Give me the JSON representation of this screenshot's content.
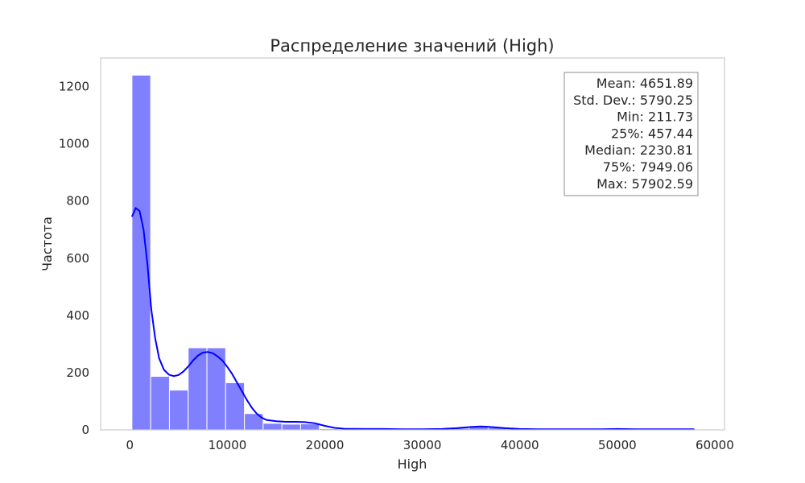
{
  "chart_data": {
    "type": "bar",
    "title": "Распределение значений (High)",
    "xlabel": "High",
    "ylabel": "Частота",
    "xlim": [
      -3000,
      61000
    ],
    "ylim": [
      0,
      1300
    ],
    "x_ticks": [
      0,
      10000,
      20000,
      30000,
      40000,
      50000,
      60000
    ],
    "y_ticks": [
      0,
      200,
      400,
      600,
      800,
      1000,
      1200
    ],
    "grid": false,
    "bar_color": "#8080ff",
    "kde_color": "#0000ff",
    "bins": [
      {
        "x0": 211.73,
        "x1": 2134.76,
        "count": 1240
      },
      {
        "x0": 2134.76,
        "x1": 4057.79,
        "count": 187
      },
      {
        "x0": 4057.79,
        "x1": 5980.82,
        "count": 139
      },
      {
        "x0": 5980.82,
        "x1": 7903.85,
        "count": 287
      },
      {
        "x0": 7903.85,
        "x1": 9826.88,
        "count": 287
      },
      {
        "x0": 9826.88,
        "x1": 11749.91,
        "count": 165
      },
      {
        "x0": 11749.91,
        "x1": 13672.94,
        "count": 57
      },
      {
        "x0": 13672.94,
        "x1": 15595.97,
        "count": 23
      },
      {
        "x0": 15595.97,
        "x1": 17519.0,
        "count": 20
      },
      {
        "x0": 17519.0,
        "x1": 19442.03,
        "count": 21
      },
      {
        "x0": 19442.03,
        "x1": 21365.06,
        "count": 4
      },
      {
        "x0": 21365.06,
        "x1": 23288.09,
        "count": 3
      },
      {
        "x0": 23288.09,
        "x1": 25211.12,
        "count": 3
      },
      {
        "x0": 25211.12,
        "x1": 27134.15,
        "count": 3
      },
      {
        "x0": 27134.15,
        "x1": 29057.18,
        "count": 2
      },
      {
        "x0": 29057.18,
        "x1": 30980.21,
        "count": 2
      },
      {
        "x0": 30980.21,
        "x1": 32903.24,
        "count": 3
      },
      {
        "x0": 32903.24,
        "x1": 34826.27,
        "count": 6
      },
      {
        "x0": 34826.27,
        "x1": 36749.3,
        "count": 10
      },
      {
        "x0": 36749.3,
        "x1": 38672.33,
        "count": 8
      },
      {
        "x0": 38672.33,
        "x1": 40595.36,
        "count": 4
      },
      {
        "x0": 40595.36,
        "x1": 42518.39,
        "count": 2
      },
      {
        "x0": 42518.39,
        "x1": 44441.42,
        "count": 2
      },
      {
        "x0": 44441.42,
        "x1": 46364.45,
        "count": 2
      },
      {
        "x0": 46364.45,
        "x1": 48287.48,
        "count": 2
      },
      {
        "x0": 48287.48,
        "x1": 50210.51,
        "count": 3
      },
      {
        "x0": 50210.51,
        "x1": 52133.54,
        "count": 3
      },
      {
        "x0": 52133.54,
        "x1": 54056.57,
        "count": 2
      },
      {
        "x0": 54056.57,
        "x1": 55979.6,
        "count": 2
      },
      {
        "x0": 55979.6,
        "x1": 57902.63,
        "count": 3
      }
    ],
    "kde": [
      [
        211,
        745
      ],
      [
        600,
        775
      ],
      [
        1000,
        765
      ],
      [
        1400,
        700
      ],
      [
        1800,
        580
      ],
      [
        2200,
        420
      ],
      [
        2600,
        320
      ],
      [
        3000,
        250
      ],
      [
        3500,
        210
      ],
      [
        4000,
        193
      ],
      [
        4500,
        188
      ],
      [
        5000,
        192
      ],
      [
        5500,
        204
      ],
      [
        6000,
        222
      ],
      [
        6500,
        243
      ],
      [
        7000,
        260
      ],
      [
        7500,
        270
      ],
      [
        8000,
        272
      ],
      [
        8500,
        268
      ],
      [
        9000,
        257
      ],
      [
        9500,
        242
      ],
      [
        10000,
        220
      ],
      [
        10500,
        195
      ],
      [
        11000,
        165
      ],
      [
        11500,
        135
      ],
      [
        12000,
        105
      ],
      [
        12500,
        78
      ],
      [
        13000,
        57
      ],
      [
        13500,
        43
      ],
      [
        14000,
        35
      ],
      [
        15000,
        30
      ],
      [
        16000,
        28
      ],
      [
        17000,
        28
      ],
      [
        18000,
        27
      ],
      [
        19000,
        23
      ],
      [
        20000,
        14
      ],
      [
        21000,
        7
      ],
      [
        22000,
        4
      ],
      [
        24000,
        3
      ],
      [
        26000,
        3
      ],
      [
        28000,
        2
      ],
      [
        30000,
        2
      ],
      [
        32000,
        3
      ],
      [
        33500,
        6
      ],
      [
        35000,
        10
      ],
      [
        36000,
        12
      ],
      [
        37000,
        10
      ],
      [
        38500,
        6
      ],
      [
        40000,
        3
      ],
      [
        42000,
        2
      ],
      [
        45000,
        2
      ],
      [
        48000,
        2
      ],
      [
        50000,
        3
      ],
      [
        52000,
        2
      ],
      [
        55000,
        2
      ],
      [
        57900,
        2
      ]
    ],
    "stats_box": {
      "placement": "top-right",
      "lines": [
        "Mean: 4651.89",
        "Std. Dev.: 5790.25",
        "Min: 211.73",
        "25%: 457.44",
        "Median: 2230.81",
        "75%: 7949.06",
        "Max: 57902.59"
      ]
    }
  }
}
